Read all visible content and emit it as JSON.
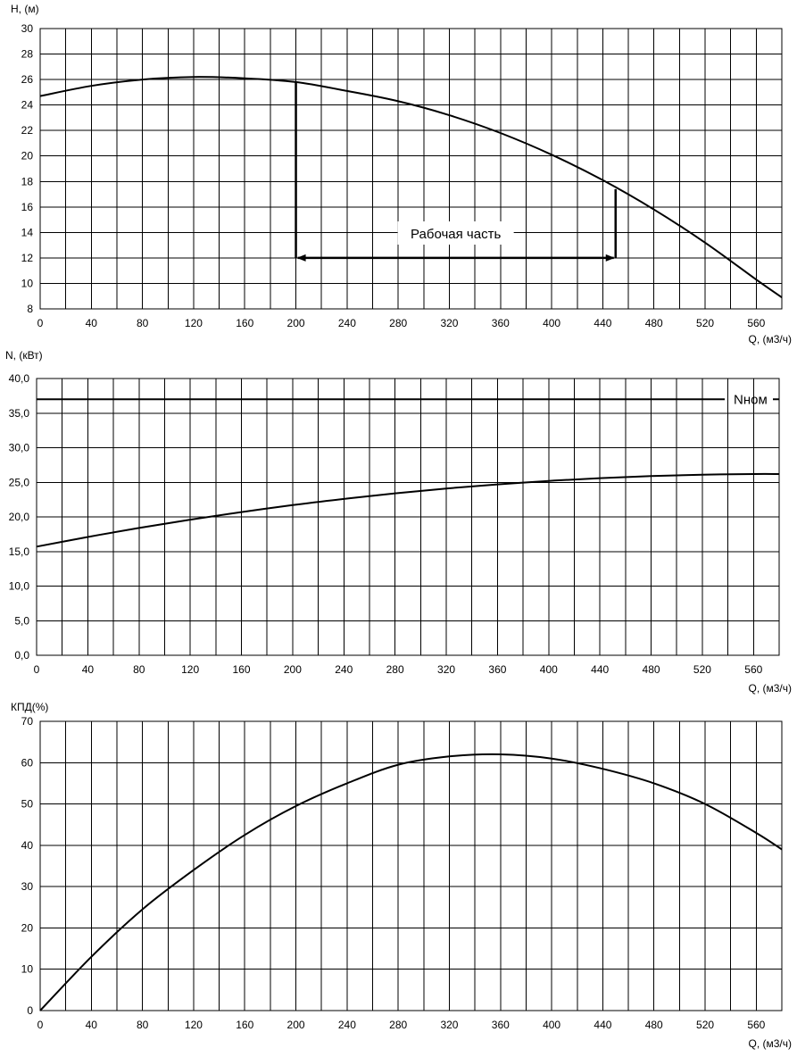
{
  "chart_data": [
    {
      "type": "line",
      "ylabel": "H, (м)",
      "xlabel": "Q, (м3/ч)",
      "xlim": [
        0,
        580
      ],
      "ylim": [
        8,
        30
      ],
      "xticks": [
        0,
        40,
        80,
        120,
        160,
        200,
        240,
        280,
        320,
        360,
        400,
        440,
        480,
        520,
        560
      ],
      "yticks": [
        8,
        10,
        12,
        14,
        16,
        18,
        20,
        22,
        24,
        26,
        28,
        30
      ],
      "ytick_labels": [
        "8",
        "10",
        "12",
        "14",
        "16",
        "18",
        "20",
        "22",
        "24",
        "26",
        "28",
        "30"
      ],
      "grid": true,
      "series": [
        {
          "x": [
            0,
            40,
            80,
            120,
            160,
            200,
            240,
            280,
            320,
            360,
            400,
            440,
            480,
            520,
            560,
            580
          ],
          "values": [
            24.7,
            25.5,
            26.0,
            26.2,
            26.1,
            25.8,
            25.1,
            24.3,
            23.2,
            21.8,
            20.1,
            18.1,
            15.8,
            13.2,
            10.3,
            8.9
          ]
        }
      ],
      "annotation": {
        "text": "Рабочая часть",
        "q_range": [
          200,
          450
        ],
        "h_level": 12,
        "h_at_start": 25.8,
        "h_at_end": 17.4
      }
    },
    {
      "type": "line",
      "ylabel": "N, (кВт)",
      "xlabel": "Q, (м3/ч)",
      "xlim": [
        0,
        580
      ],
      "ylim": [
        0,
        40
      ],
      "xticks": [
        0,
        40,
        80,
        120,
        160,
        200,
        240,
        280,
        320,
        360,
        400,
        440,
        480,
        520,
        560
      ],
      "yticks": [
        0,
        5,
        10,
        15,
        20,
        25,
        30,
        35,
        40
      ],
      "ytick_labels": [
        "0,0",
        "5,0",
        "10,0",
        "15,0",
        "20,0",
        "25,0",
        "30,0",
        "35,0",
        "40,0"
      ],
      "grid": true,
      "series": [
        {
          "x": [
            0,
            40,
            80,
            120,
            160,
            200,
            240,
            280,
            320,
            360,
            400,
            440,
            480,
            520,
            560,
            580
          ],
          "values": [
            15.7,
            17.1,
            18.4,
            19.6,
            20.7,
            21.7,
            22.6,
            23.4,
            24.1,
            24.7,
            25.2,
            25.6,
            25.9,
            26.1,
            26.2,
            26.2
          ]
        }
      ],
      "reference_line": {
        "label": "Nном",
        "value": 37
      }
    },
    {
      "type": "line",
      "ylabel": "КПД(%)",
      "xlabel": "Q, (м3/ч)",
      "xlim": [
        0,
        580
      ],
      "ylim": [
        0,
        70
      ],
      "xticks": [
        0,
        40,
        80,
        120,
        160,
        200,
        240,
        280,
        320,
        360,
        400,
        440,
        480,
        520,
        560
      ],
      "yticks": [
        0,
        10,
        20,
        30,
        40,
        50,
        60,
        70
      ],
      "ytick_labels": [
        "0",
        "10",
        "20",
        "30",
        "40",
        "50",
        "60",
        "70"
      ],
      "grid": true,
      "series": [
        {
          "x": [
            0,
            40,
            80,
            120,
            160,
            200,
            240,
            280,
            320,
            360,
            400,
            440,
            480,
            520,
            560,
            580
          ],
          "values": [
            0,
            13,
            24.5,
            34,
            42.5,
            49.5,
            55,
            59.5,
            61.5,
            62,
            61,
            58.5,
            55,
            50,
            43,
            39
          ]
        }
      ]
    }
  ]
}
